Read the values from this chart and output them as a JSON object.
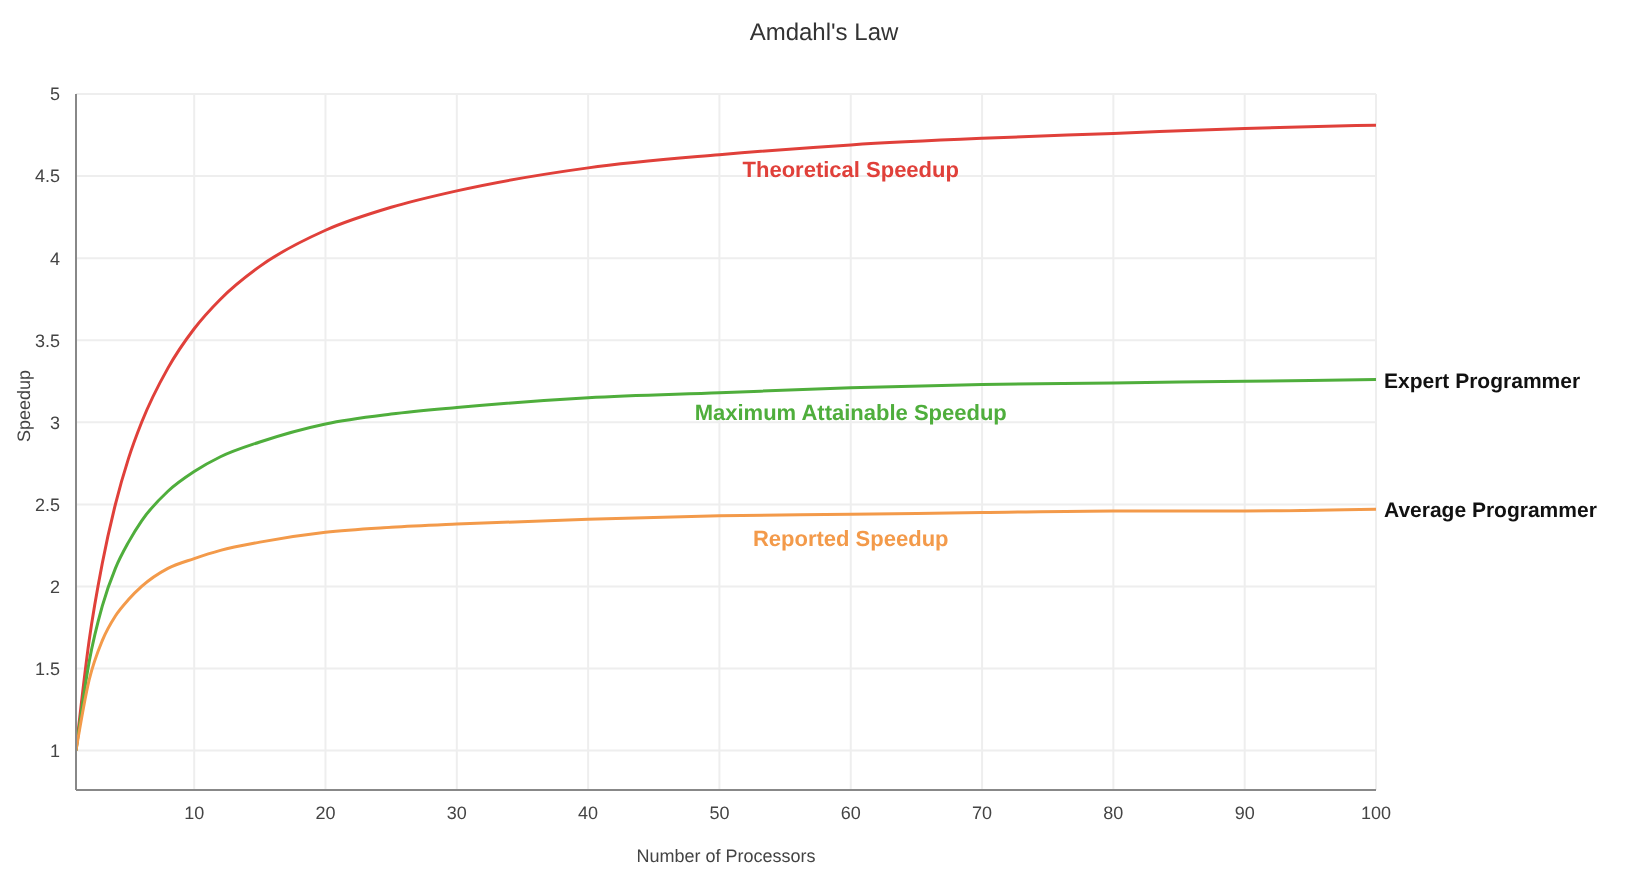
{
  "chart_data": {
    "type": "line",
    "title": "Amdahl's Law",
    "xlabel": "Number of Processors",
    "ylabel": "Speedup",
    "x": [
      1,
      2,
      3,
      4,
      5,
      6,
      8,
      10,
      12,
      15,
      20,
      25,
      30,
      40,
      50,
      60,
      70,
      80,
      90,
      100
    ],
    "series": [
      {
        "name": "Theoretical Speedup",
        "color": "#e0403a",
        "values": [
          1,
          1.67,
          2.14,
          2.5,
          2.78,
          3,
          3.33,
          3.57,
          3.75,
          3.95,
          4.17,
          4.31,
          4.41,
          4.55,
          4.63,
          4.69,
          4.73,
          4.76,
          4.79,
          4.81
        ]
      },
      {
        "name": "Maximum Attainable Speedup",
        "color": "#4fae3c",
        "values": [
          1,
          1.54,
          1.88,
          2.11,
          2.27,
          2.4,
          2.58,
          2.7,
          2.79,
          2.88,
          2.99,
          3.05,
          3.09,
          3.15,
          3.18,
          3.21,
          3.23,
          3.24,
          3.25,
          3.26
        ]
      },
      {
        "name": "Reported Speedup",
        "color": "#f39a4a",
        "values": [
          1,
          1.43,
          1.67,
          1.82,
          1.92,
          2,
          2.11,
          2.17,
          2.22,
          2.27,
          2.33,
          2.36,
          2.38,
          2.41,
          2.43,
          2.44,
          2.45,
          2.46,
          2.46,
          2.47
        ]
      }
    ],
    "annotations": [
      {
        "text": "Expert Programmer",
        "x": 100,
        "y": 3.26
      },
      {
        "text": "Average Programmer",
        "x": 100,
        "y": 2.47
      }
    ],
    "xlim": [
      1,
      100
    ],
    "xticks": [
      10,
      20,
      30,
      40,
      50,
      60,
      70,
      80,
      90,
      100
    ],
    "ylim": [
      0.76,
      5
    ],
    "yticks": [
      1,
      1.5,
      2,
      2.5,
      3,
      3.5,
      4,
      4.5,
      5
    ],
    "grid": true,
    "legend": false,
    "marker": "none",
    "line_style": "solid"
  }
}
